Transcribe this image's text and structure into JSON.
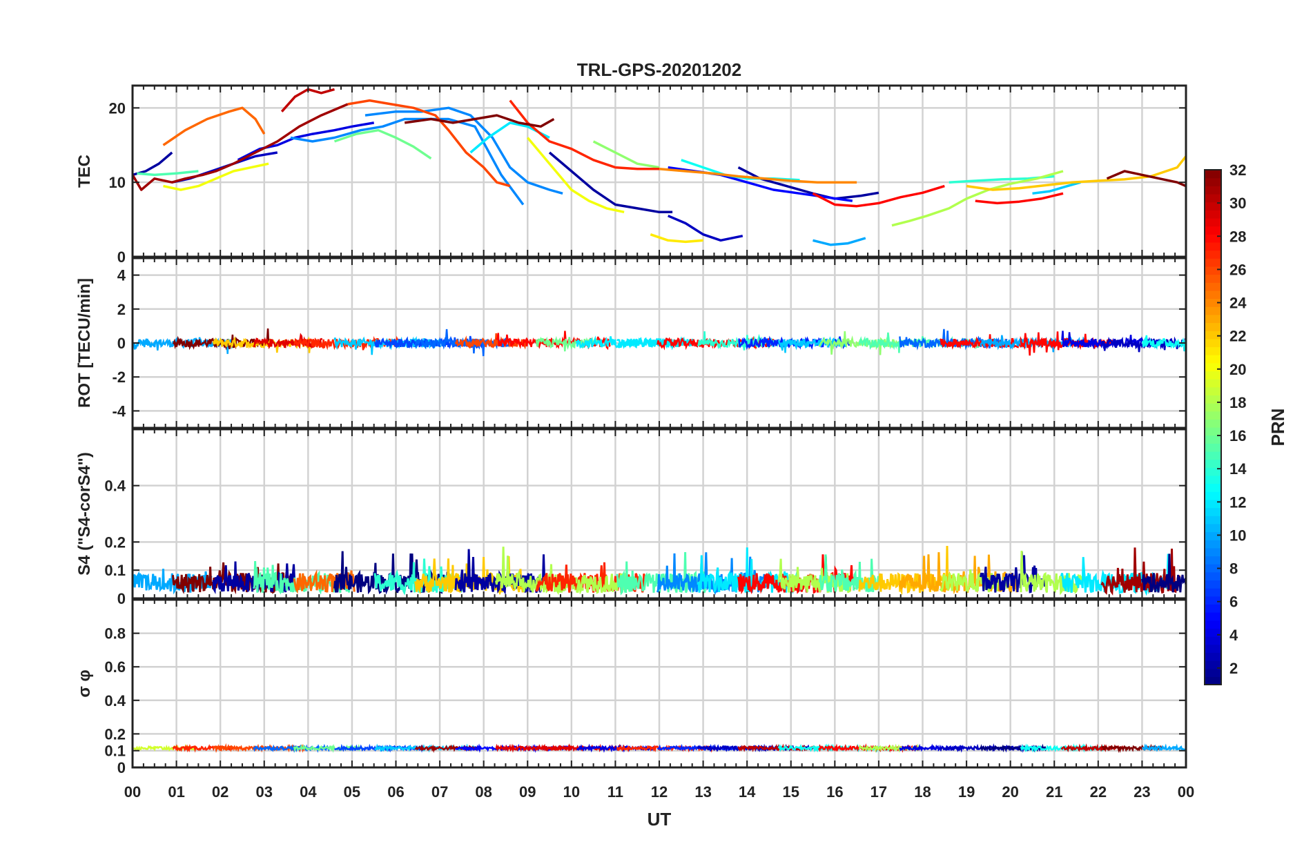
{
  "chart_data": {
    "type": "line",
    "title": "TRL-GPS-20201202",
    "xlabel": "UT",
    "xlim": [
      0,
      24
    ],
    "x_ticks": [
      "00",
      "01",
      "02",
      "03",
      "04",
      "05",
      "06",
      "07",
      "08",
      "09",
      "10",
      "11",
      "12",
      "13",
      "14",
      "15",
      "16",
      "17",
      "18",
      "19",
      "20",
      "21",
      "22",
      "23",
      "00"
    ],
    "grid": true,
    "colorbar": {
      "label": "PRN",
      "colormap": "jet",
      "range": [
        1,
        32
      ],
      "ticks": [
        "2",
        "4",
        "6",
        "8",
        "10",
        "12",
        "14",
        "16",
        "18",
        "20",
        "22",
        "24",
        "26",
        "28",
        "30",
        "32"
      ]
    },
    "panels": [
      {
        "id": "tec",
        "ylabel": "TEC",
        "ylim": [
          0,
          23
        ],
        "yticks": [
          "0",
          "10",
          "20"
        ],
        "series": [
          {
            "prn": 2,
            "x": [
              0.0,
              0.3,
              0.6,
              0.9
            ],
            "y": [
              11,
              11.5,
              12.5,
              14
            ]
          },
          {
            "prn": 3,
            "x": [
              0.9,
              1.3,
              1.8,
              2.3,
              2.8,
              3.3
            ],
            "y": [
              10,
              10.5,
              11.5,
              12.5,
              13.5,
              14
            ]
          },
          {
            "prn": 4,
            "x": [
              2.4,
              2.9,
              3.3,
              3.7,
              4.1,
              4.6,
              5.0,
              5.5
            ],
            "y": [
              13,
              14.5,
              15,
              16,
              16.5,
              17,
              17.5,
              18
            ]
          },
          {
            "prn": 2,
            "x": [
              9.5,
              10.0,
              10.5,
              11.0,
              11.5,
              12.0,
              12.3
            ],
            "y": [
              14,
              11.5,
              9,
              7,
              6.5,
              6,
              6
            ]
          },
          {
            "prn": 3,
            "x": [
              12.2,
              12.6,
              13.0,
              13.4,
              13.9
            ],
            "y": [
              5.5,
              4.5,
              3,
              2.2,
              2.8
            ]
          },
          {
            "prn": 2,
            "x": [
              13.8,
              14.3,
              14.9,
              15.5,
              16.0,
              16.6,
              17.0
            ],
            "y": [
              12,
              10.5,
              9.5,
              8.5,
              7.8,
              8.2,
              8.6
            ]
          },
          {
            "prn": 5,
            "x": [
              12.2,
              12.8,
              13.4,
              14.0,
              14.6,
              15.2,
              15.8,
              16.4
            ],
            "y": [
              12,
              11.5,
              11,
              10,
              9,
              8.5,
              8,
              7.5
            ]
          },
          {
            "prn": 9,
            "x": [
              5.3,
              6.0,
              6.6,
              7.2,
              7.7,
              8.2,
              8.6,
              9.0,
              9.5,
              9.8
            ],
            "y": [
              19,
              19.5,
              19.5,
              20,
              19,
              16,
              12,
              10,
              9,
              8.5
            ]
          },
          {
            "prn": 9,
            "x": [
              3.6,
              4.1,
              4.6,
              5.2,
              5.7,
              6.2,
              6.6,
              7.2,
              7.8,
              8.4,
              8.9
            ],
            "y": [
              16,
              15.5,
              16,
              17,
              17.5,
              18.5,
              18.5,
              18.5,
              17.5,
              11,
              7
            ]
          },
          {
            "prn": 10,
            "x": [
              15.5,
              15.9,
              16.3,
              16.7
            ],
            "y": [
              2.2,
              1.6,
              1.8,
              2.5
            ]
          },
          {
            "prn": 11,
            "x": [
              20.5,
              20.9,
              21.3,
              21.6
            ],
            "y": [
              8.5,
              8.8,
              9.5,
              10
            ]
          },
          {
            "prn": 12,
            "x": [
              7.7,
              8.1,
              8.6,
              9.0,
              9.5
            ],
            "y": [
              14,
              16,
              18,
              17.5,
              16
            ]
          },
          {
            "prn": 13,
            "x": [
              12.5,
              13.0,
              13.5,
              14.0,
              14.6,
              15.2
            ],
            "y": [
              13,
              12,
              11,
              10.5,
              10.5,
              10.3
            ]
          },
          {
            "prn": 14,
            "x": [
              18.6,
              19.2,
              19.8,
              20.4,
              21.0
            ],
            "y": [
              10,
              10.2,
              10.4,
              10.5,
              10.8
            ]
          },
          {
            "prn": 15,
            "x": [
              0.1,
              0.5,
              1.0,
              1.5
            ],
            "y": [
              11.2,
              11,
              11.2,
              11.5
            ]
          },
          {
            "prn": 16,
            "x": [
              4.6,
              5.1,
              5.6,
              6.0,
              6.4,
              6.8
            ],
            "y": [
              15.5,
              16.5,
              17,
              16,
              14.8,
              13.2
            ]
          },
          {
            "prn": 17,
            "x": [
              10.5,
              11.0,
              11.5,
              12.0
            ],
            "y": [
              15.5,
              14,
              12.5,
              12
            ]
          },
          {
            "prn": 18,
            "x": [
              17.3,
              17.7,
              18.1,
              18.6,
              19.0,
              19.5,
              20.0,
              20.6,
              21.2
            ],
            "y": [
              4.2,
              4.8,
              5.5,
              6.5,
              7.8,
              9,
              9.8,
              10.5,
              11.5
            ]
          },
          {
            "prn": 20,
            "x": [
              9.0,
              9.5,
              10.0,
              10.4,
              10.8,
              11.2
            ],
            "y": [
              16,
              12.5,
              9,
              7.5,
              6.5,
              6
            ]
          },
          {
            "prn": 21,
            "x": [
              11.8,
              12.2,
              12.6,
              13.0
            ],
            "y": [
              3,
              2.2,
              2,
              2.2
            ]
          },
          {
            "prn": 20,
            "x": [
              0.7,
              1.1,
              1.5,
              1.9,
              2.3,
              2.7,
              3.1
            ],
            "y": [
              9.5,
              9,
              9.5,
              10.5,
              11.5,
              12,
              12.5
            ]
          },
          {
            "prn": 22,
            "x": [
              19.0,
              19.6,
              20.2,
              20.8,
              21.4,
              22.0,
              22.6,
              23.2,
              23.8,
              24.0
            ],
            "y": [
              9.5,
              9,
              9.2,
              9.6,
              10,
              10.2,
              10.4,
              10.8,
              12,
              13.5
            ]
          },
          {
            "prn": 24,
            "x": [
              12.0,
              12.6,
              13.2,
              13.8,
              14.4,
              15.0,
              15.6,
              16.0,
              16.5
            ],
            "y": [
              11.8,
              11.5,
              11.2,
              10.8,
              10.5,
              10.2,
              10,
              10,
              10
            ]
          },
          {
            "prn": 25,
            "x": [
              0.7,
              1.2,
              1.7,
              2.2,
              2.5,
              2.8,
              3.0
            ],
            "y": [
              15,
              17,
              18.5,
              19.5,
              20,
              18.5,
              16.5
            ]
          },
          {
            "prn": 26,
            "x": [
              4.9,
              5.4,
              5.9,
              6.4,
              6.9,
              7.2,
              7.6,
              8.0,
              8.3,
              8.6
            ],
            "y": [
              20.5,
              21,
              20.5,
              20,
              19,
              17,
              14,
              12,
              10,
              9.5
            ]
          },
          {
            "prn": 27,
            "x": [
              8.6,
              9.0,
              9.5,
              10.0,
              10.5,
              11.0,
              11.5,
              12.0
            ],
            "y": [
              21,
              18,
              15.5,
              14.5,
              13,
              12,
              11.8,
              11.8
            ]
          },
          {
            "prn": 28,
            "x": [
              15.5,
              16.0,
              16.5,
              17.0,
              17.5,
              18.0,
              18.5
            ],
            "y": [
              8.5,
              7,
              6.8,
              7.2,
              8,
              8.6,
              9.5
            ]
          },
          {
            "prn": 28,
            "x": [
              19.2,
              19.7,
              20.2,
              20.7,
              21.2
            ],
            "y": [
              7.5,
              7.2,
              7.4,
              7.8,
              8.5
            ]
          },
          {
            "prn": 30,
            "x": [
              3.4,
              3.7,
              4.0,
              4.3,
              4.6
            ],
            "y": [
              19.5,
              21.5,
              22.5,
              22,
              22.5
            ]
          },
          {
            "prn": 31,
            "x": [
              0.0,
              0.2,
              0.5,
              0.9,
              1.2,
              1.6,
              1.9,
              2.3,
              2.8,
              3.3,
              3.8,
              4.3,
              4.9
            ],
            "y": [
              11,
              9,
              10.5,
              10,
              10.5,
              11,
              11.5,
              12.5,
              14,
              15.5,
              17.5,
              19,
              20.5
            ]
          },
          {
            "prn": 32,
            "x": [
              6.2,
              6.8,
              7.3,
              7.8,
              8.3,
              8.8,
              9.3,
              9.6
            ],
            "y": [
              18,
              18.5,
              18,
              18.5,
              19,
              18,
              17.5,
              18.5
            ]
          },
          {
            "prn": 32,
            "x": [
              22.2,
              22.6,
              23.0,
              23.4,
              23.8,
              24.0
            ],
            "y": [
              10.5,
              11.5,
              11,
              10.5,
              10,
              9.5
            ]
          }
        ]
      },
      {
        "id": "rot",
        "ylabel": "ROT [TECU/min]",
        "ylim": [
          -5,
          5
        ],
        "yticks": [
          "-4",
          "-2",
          "0",
          "2",
          "4"
        ],
        "trace_note": "near-zero noise, amplitude ~0.3 TECU/min, spikes to about ±0.8"
      },
      {
        "id": "s4",
        "ylabel": "S4 (\"S4-corS4\")",
        "ylim": [
          0,
          0.6
        ],
        "yticks": [
          "0",
          "0.1",
          "0.2",
          "0.4"
        ],
        "trace_note": "noisy baseline 0.02–0.1, peaks up to ~0.22"
      },
      {
        "id": "sigma_phi",
        "ylabel": "σ φ",
        "ylim": [
          0,
          1
        ],
        "yticks": [
          "0",
          "0.1",
          "0.2",
          "0.4",
          "0.6",
          "0.8"
        ],
        "trace_note": "flat band near 0.12"
      }
    ]
  }
}
